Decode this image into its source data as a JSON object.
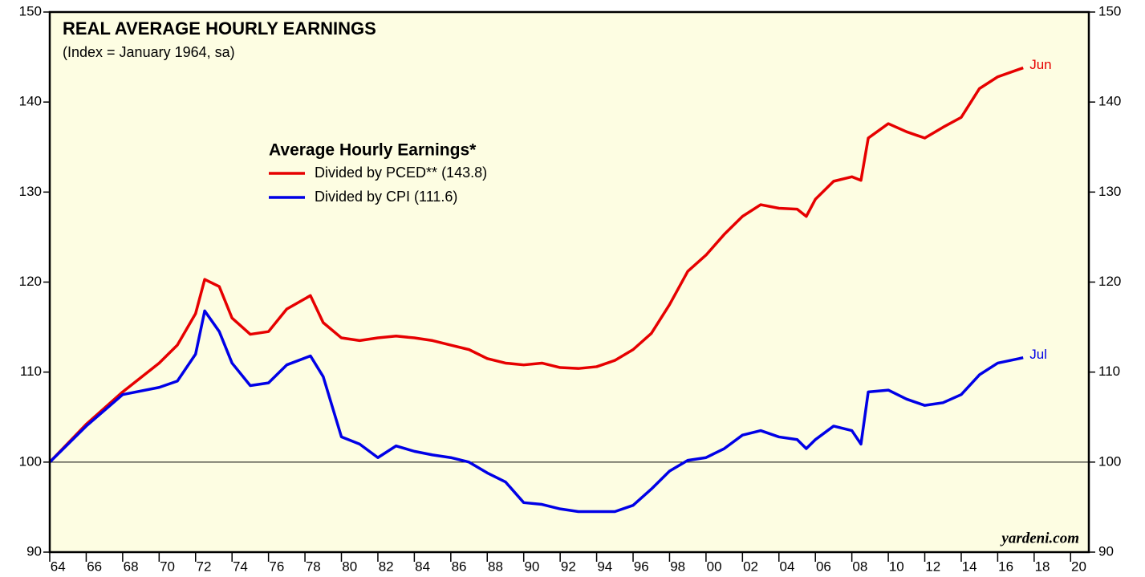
{
  "chart_data": {
    "type": "line",
    "title": "REAL AVERAGE HOURLY EARNINGS",
    "subtitle": "(Index = January 1964, sa)",
    "legend_title": "Average Hourly Earnings*",
    "source": "yardeni.com",
    "x": [
      1964,
      1966,
      1968,
      1970,
      1971,
      1972,
      1972.5,
      1973.3,
      1974,
      1975,
      1976,
      1977,
      1978.3,
      1979,
      1980,
      1981,
      1982,
      1983,
      1984,
      1985,
      1986,
      1987,
      1988,
      1989,
      1990,
      1991,
      1992,
      1993,
      1994,
      1995,
      1996,
      1997,
      1998,
      1999,
      2000,
      2001,
      2002,
      2003,
      2004,
      2005,
      2005.5,
      2006,
      2007,
      2008,
      2008.5,
      2008.9,
      2010,
      2011,
      2012,
      2013,
      2014,
      2015,
      2016,
      2017.4
    ],
    "series": [
      {
        "name": "Divided by PCED** (143.8)",
        "color": "#e60000",
        "end_label": "Jun",
        "values": [
          100,
          104.2,
          107.8,
          111,
          113,
          116.5,
          120.3,
          119.5,
          116,
          114.2,
          114.5,
          117,
          118.5,
          115.5,
          113.8,
          113.5,
          113.8,
          114,
          113.8,
          113.5,
          113,
          112.5,
          111.5,
          111,
          110.8,
          111,
          110.5,
          110.4,
          110.6,
          111.3,
          112.5,
          114.3,
          117.5,
          121.2,
          123,
          125.3,
          127.3,
          128.6,
          128.2,
          128.1,
          127.3,
          129.2,
          131.2,
          131.7,
          131.3,
          136,
          137.6,
          136.7,
          136,
          137.2,
          138.3,
          141.5,
          142.8,
          143.8
        ]
      },
      {
        "name": "Divided by CPI (111.6)",
        "color": "#0000e6",
        "end_label": "Jul",
        "values": [
          100,
          104,
          107.5,
          108.3,
          109,
          112,
          116.8,
          114.5,
          111,
          108.5,
          108.8,
          110.8,
          111.8,
          109.5,
          102.8,
          102,
          100.5,
          101.8,
          101.2,
          100.8,
          100.5,
          100,
          98.8,
          97.8,
          95.5,
          95.3,
          94.8,
          94.5,
          94.5,
          94.5,
          95.2,
          97,
          99,
          100.2,
          100.5,
          101.5,
          103,
          103.5,
          102.8,
          102.5,
          101.5,
          102.5,
          104,
          103.5,
          102,
          107.8,
          108,
          107,
          106.3,
          106.6,
          107.5,
          109.7,
          111,
          111.6
        ]
      }
    ],
    "xlim": [
      1964,
      2021
    ],
    "xticks": [
      {
        "value": 1964,
        "label": "64"
      },
      {
        "value": 1966,
        "label": "66"
      },
      {
        "value": 1968,
        "label": "68"
      },
      {
        "value": 1970,
        "label": "70"
      },
      {
        "value": 1972,
        "label": "72"
      },
      {
        "value": 1974,
        "label": "74"
      },
      {
        "value": 1976,
        "label": "76"
      },
      {
        "value": 1978,
        "label": "78"
      },
      {
        "value": 1980,
        "label": "80"
      },
      {
        "value": 1982,
        "label": "82"
      },
      {
        "value": 1984,
        "label": "84"
      },
      {
        "value": 1986,
        "label": "86"
      },
      {
        "value": 1988,
        "label": "88"
      },
      {
        "value": 1990,
        "label": "90"
      },
      {
        "value": 1992,
        "label": "92"
      },
      {
        "value": 1994,
        "label": "94"
      },
      {
        "value": 1996,
        "label": "96"
      },
      {
        "value": 1998,
        "label": "98"
      },
      {
        "value": 2000,
        "label": "00"
      },
      {
        "value": 2002,
        "label": "02"
      },
      {
        "value": 2004,
        "label": "04"
      },
      {
        "value": 2006,
        "label": "06"
      },
      {
        "value": 2008,
        "label": "08"
      },
      {
        "value": 2010,
        "label": "10"
      },
      {
        "value": 2012,
        "label": "12"
      },
      {
        "value": 2014,
        "label": "14"
      },
      {
        "value": 2016,
        "label": "16"
      },
      {
        "value": 2018,
        "label": "18"
      },
      {
        "value": 2020,
        "label": "20"
      }
    ],
    "ylim": [
      90,
      150
    ],
    "yticks": [
      90,
      100,
      110,
      120,
      130,
      140,
      150
    ],
    "reference_line": 100,
    "background": "#fdfde2"
  }
}
